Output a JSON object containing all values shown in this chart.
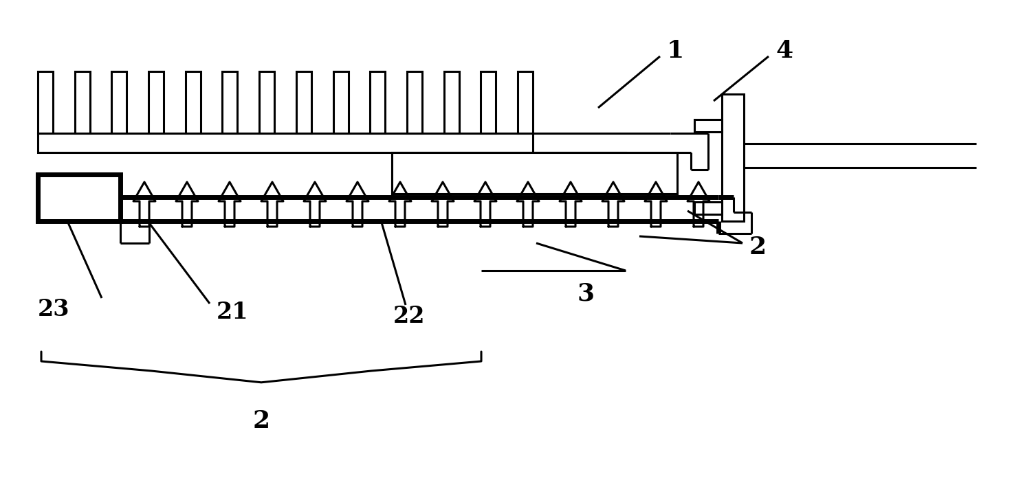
{
  "bg_color": "#ffffff",
  "line_color": "#000000",
  "lw": 2.2,
  "thick_lw": 5.0,
  "fig_width": 14.88,
  "fig_height": 7.12
}
